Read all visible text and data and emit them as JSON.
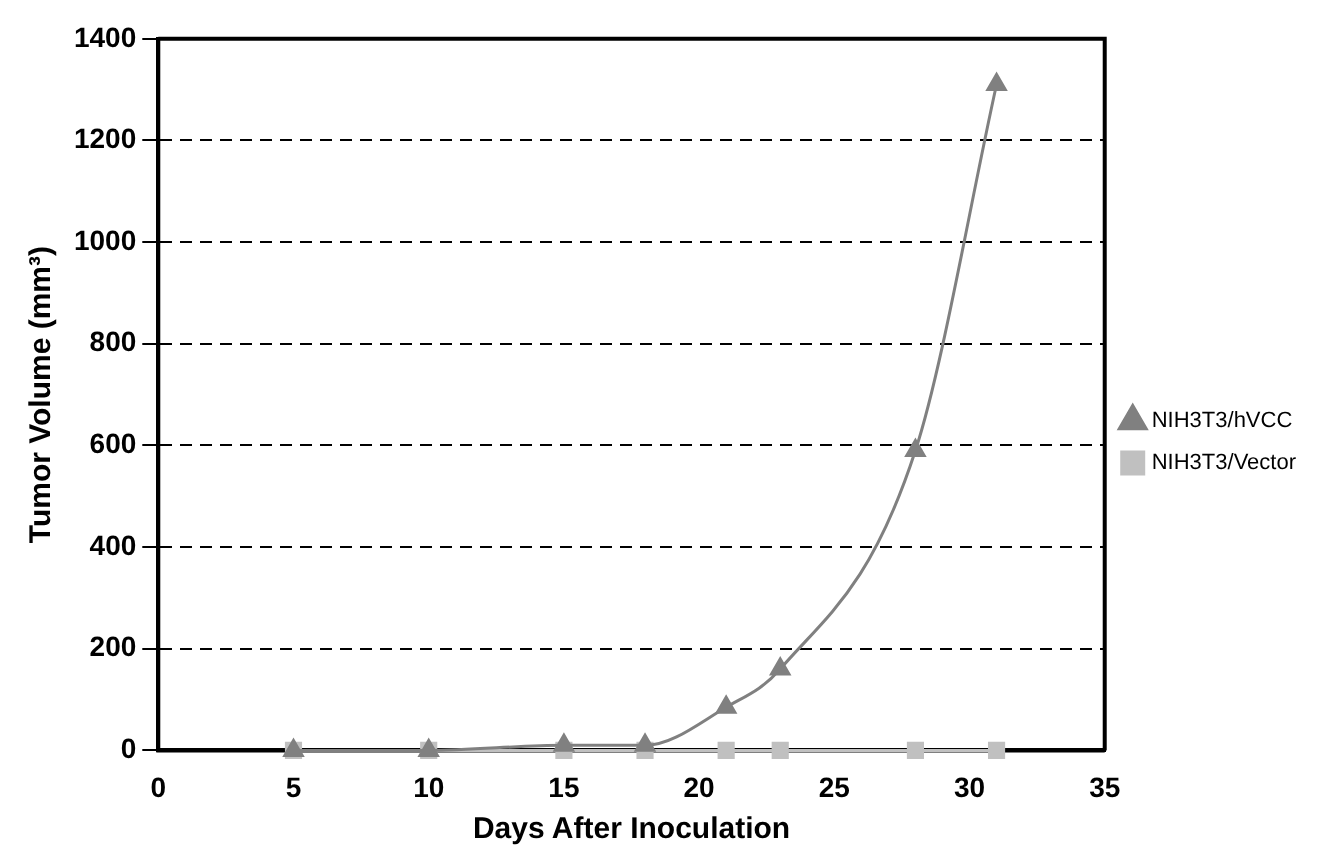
{
  "chart_data": {
    "type": "line",
    "xlabel": "Days After Inoculation",
    "ylabel": "Tumor Volume (mm³)",
    "x": [
      5,
      10,
      15,
      18,
      21,
      23,
      28,
      31
    ],
    "series": [
      {
        "name": "NIH3T3/hVCC",
        "color": "#808080",
        "marker": "triangle",
        "values": [
          0,
          0,
          10,
          10,
          85,
          160,
          590,
          1310
        ]
      },
      {
        "name": "NIH3T3/Vector",
        "color": "#c0c0c0",
        "marker": "square",
        "values": [
          0,
          0,
          0,
          0,
          0,
          0,
          0,
          0
        ]
      }
    ],
    "xlim": [
      0,
      35
    ],
    "xticks": [
      0,
      5,
      10,
      15,
      20,
      25,
      30,
      35
    ],
    "ylim": [
      0,
      1400
    ],
    "yticks": [
      0,
      200,
      400,
      600,
      800,
      1000,
      1200,
      1400
    ],
    "grid": "y",
    "legend": "right",
    "line_style": "solid"
  }
}
